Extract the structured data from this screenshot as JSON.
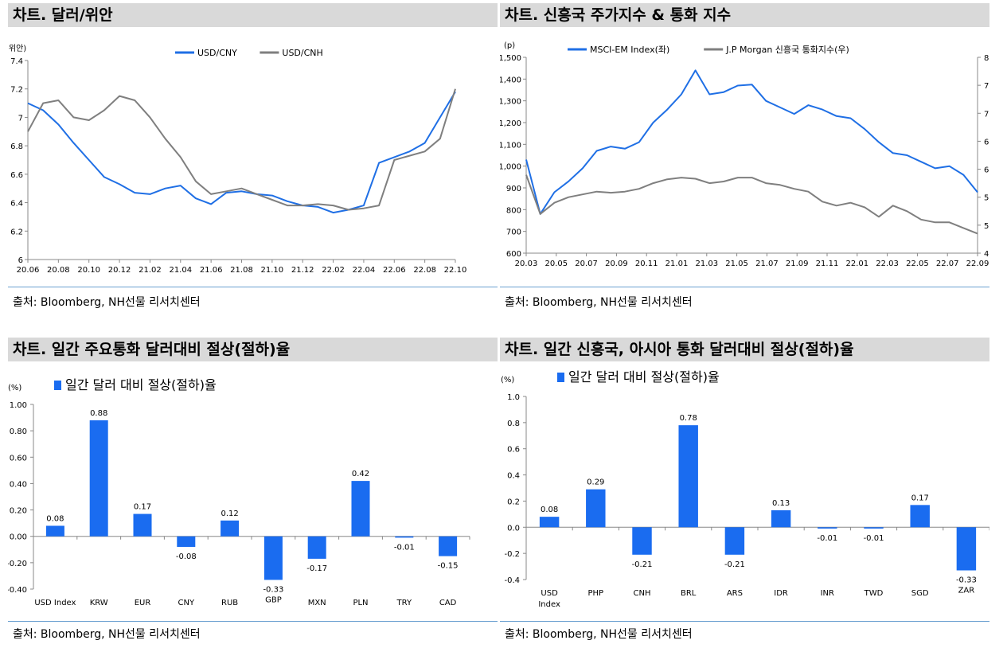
{
  "panels": [
    {
      "title": "차트. 달러/위안",
      "source": "출처: Bloomberg, NH선물 리서치센터"
    },
    {
      "title": "차트. 신흥국 주가지수 & 통화 지수",
      "source": "출처: Bloomberg, NH선물 리서치센터"
    },
    {
      "title": "차트. 일간 주요통화 달러대비 절상(절하)율",
      "source": "출처: Bloomberg, NH선물 리서치센터"
    },
    {
      "title": "차트. 일간 신흥국, 아시아 통화 달러대비 절상(절하)율",
      "source": "출처: Bloomberg, NH선물 리서치센터"
    }
  ],
  "colors": {
    "blue": "#1f6fe5",
    "gray": "#7f7f7f",
    "bar": "#1a6cf0"
  },
  "chart_data": [
    {
      "type": "line",
      "ylabel": "(위안)",
      "ylim": [
        6,
        7.4
      ],
      "yticks": [
        6,
        6.2,
        6.4,
        6.6,
        6.8,
        7,
        7.2,
        7.4
      ],
      "ytick_labels": [
        "6",
        "6.2",
        "6.4",
        "6.6",
        "6.8",
        "7",
        "7.2",
        "7.4"
      ],
      "xticks": [
        "20.06",
        "20.08",
        "20.10",
        "20.12",
        "21.02",
        "21.04",
        "21.06",
        "21.08",
        "21.10",
        "21.12",
        "22.02",
        "22.04",
        "22.06",
        "22.08",
        "22.10"
      ],
      "legend_position": "top-center",
      "series": [
        {
          "name": "USD/CNY",
          "color": "#1f6fe5",
          "x": [
            "20.06",
            "20.07",
            "20.08",
            "20.09",
            "20.10",
            "20.11",
            "20.12",
            "21.01",
            "21.02",
            "21.03",
            "21.04",
            "21.05",
            "21.06",
            "21.07",
            "21.08",
            "21.09",
            "21.10",
            "21.11",
            "21.12",
            "22.01",
            "22.02",
            "22.03",
            "22.04",
            "22.05",
            "22.06",
            "22.07",
            "22.08",
            "22.09",
            "22.10"
          ],
          "values": [
            7.1,
            7.05,
            6.95,
            6.82,
            6.7,
            6.58,
            6.53,
            6.47,
            6.46,
            6.5,
            6.52,
            6.43,
            6.39,
            6.47,
            6.48,
            6.46,
            6.45,
            6.41,
            6.38,
            6.37,
            6.33,
            6.35,
            6.38,
            6.68,
            6.72,
            6.76,
            6.82,
            7.0,
            7.18
          ]
        },
        {
          "name": "USD/CNH",
          "color": "#7f7f7f",
          "x": [
            "20.06",
            "20.07",
            "20.08",
            "20.09",
            "20.10",
            "20.11",
            "20.12",
            "21.01",
            "21.02",
            "21.03",
            "21.04",
            "21.05",
            "21.06",
            "21.07",
            "21.08",
            "21.09",
            "21.10",
            "21.11",
            "21.12",
            "22.01",
            "22.02",
            "22.03",
            "22.04",
            "22.05",
            "22.06",
            "22.07",
            "22.08",
            "22.09",
            "22.10"
          ],
          "values": [
            6.9,
            7.1,
            7.12,
            7.0,
            6.98,
            7.05,
            7.15,
            7.12,
            7.0,
            6.85,
            6.72,
            6.55,
            6.46,
            6.48,
            6.5,
            6.46,
            6.42,
            6.38,
            6.38,
            6.39,
            6.38,
            6.35,
            6.36,
            6.38,
            6.7,
            6.73,
            6.76,
            6.85,
            7.2
          ]
        }
      ]
    },
    {
      "type": "line",
      "ylabel": "(p)",
      "ylim": [
        600,
        1500
      ],
      "yticks": [
        600,
        700,
        800,
        900,
        1000,
        1100,
        1200,
        1300,
        1400,
        1500
      ],
      "ytick_labels": [
        "600",
        "700",
        "800",
        "900",
        "1,000",
        "1,100",
        "1,200",
        "1,300",
        "1,400",
        "1,500"
      ],
      "y2lim": [
        45,
        80
      ],
      "y2ticks": [
        45,
        50,
        55,
        60,
        65,
        70,
        75,
        80
      ],
      "y2tick_labels": [
        "45",
        "50",
        "55",
        "60",
        "65",
        "70",
        "75",
        "80"
      ],
      "xticks": [
        "20.03",
        "20.05",
        "20.07",
        "20.09",
        "20.11",
        "21.01",
        "21.03",
        "21.05",
        "21.07",
        "21.09",
        "21.11",
        "22.01",
        "22.03",
        "22.05",
        "22.07",
        "22.09"
      ],
      "legend_position": "top-center",
      "series": [
        {
          "name": "MSCI-EM Index(좌)",
          "axis": "left",
          "color": "#1f6fe5",
          "x": [
            "20.03",
            "20.03b",
            "20.04",
            "20.05",
            "20.06",
            "20.07",
            "20.08",
            "20.09",
            "20.10",
            "20.11",
            "20.12",
            "21.01",
            "21.02",
            "21.03",
            "21.04",
            "21.05",
            "21.06",
            "21.07",
            "21.08",
            "21.09",
            "21.10",
            "21.11",
            "21.12",
            "22.01",
            "22.02",
            "22.03",
            "22.04",
            "22.05",
            "22.06",
            "22.07",
            "22.08",
            "22.09",
            "22.10"
          ],
          "values": [
            1030,
            780,
            880,
            930,
            990,
            1070,
            1090,
            1080,
            1110,
            1200,
            1260,
            1330,
            1440,
            1330,
            1340,
            1370,
            1375,
            1300,
            1270,
            1240,
            1280,
            1260,
            1230,
            1220,
            1170,
            1110,
            1060,
            1050,
            1020,
            990,
            1000,
            960,
            880
          ]
        },
        {
          "name": "J.P Morgan 신흥국 통화지수(우)",
          "axis": "right",
          "color": "#7f7f7f",
          "x": [
            "20.03",
            "20.03b",
            "20.04",
            "20.05",
            "20.06",
            "20.07",
            "20.08",
            "20.09",
            "20.10",
            "20.11",
            "20.12",
            "21.01",
            "21.02",
            "21.03",
            "21.04",
            "21.05",
            "21.06",
            "21.07",
            "21.08",
            "21.09",
            "21.10",
            "21.11",
            "21.12",
            "22.01",
            "22.02",
            "22.03",
            "22.04",
            "22.05",
            "22.06",
            "22.07",
            "22.08",
            "22.09",
            "22.10"
          ],
          "values": [
            59,
            52,
            54,
            55,
            55.5,
            56,
            55.8,
            56,
            56.5,
            57.5,
            58.2,
            58.5,
            58.3,
            57.5,
            57.8,
            58.5,
            58.5,
            57.5,
            57.2,
            56.5,
            56.0,
            54.2,
            53.5,
            54.0,
            53.2,
            51.5,
            53.5,
            52.5,
            51.0,
            50.5,
            50.5,
            49.5,
            48.5
          ]
        }
      ]
    },
    {
      "type": "bar",
      "ylabel": "(%)",
      "legend": "일간 달러 대비 절상(절하)율",
      "ylim": [
        -0.4,
        1.0
      ],
      "yticks": [
        -0.4,
        -0.2,
        0,
        0.2,
        0.4,
        0.6,
        0.8,
        1.0
      ],
      "ytick_labels": [
        "-0.40",
        "-0.20",
        "0.00",
        "0.20",
        "0.40",
        "0.60",
        "0.80",
        "1.00"
      ],
      "categories": [
        "USD Index",
        "KRW",
        "EUR",
        "CNY",
        "RUB",
        "GBP",
        "MXN",
        "PLN",
        "TRY",
        "CAD"
      ],
      "values": [
        0.08,
        0.88,
        0.17,
        -0.08,
        0.12,
        -0.33,
        -0.17,
        0.42,
        -0.01,
        -0.15
      ],
      "value_labels": [
        "0.08",
        "0.88",
        "0.17",
        "-0.08",
        "0.12",
        "-0.33",
        "-0.17",
        "0.42",
        "-0.01",
        "-0.15"
      ]
    },
    {
      "type": "bar",
      "ylabel": "(%)",
      "legend": "일간 달러 대비 절상(절하)율",
      "ylim": [
        -0.4,
        1.0
      ],
      "yticks": [
        -0.4,
        -0.2,
        0,
        0.2,
        0.4,
        0.6,
        0.8,
        1.0
      ],
      "ytick_labels": [
        "-0.4",
        "-0.2",
        "0.0",
        "0.2",
        "0.4",
        "0.6",
        "0.8",
        "1.0"
      ],
      "categories": [
        "USD Index",
        "PHP",
        "CNH",
        "BRL",
        "ARS",
        "IDR",
        "INR",
        "TWD",
        "SGD",
        "ZAR"
      ],
      "values": [
        0.08,
        0.29,
        -0.21,
        0.78,
        -0.21,
        0.13,
        -0.01,
        -0.01,
        0.17,
        -0.33
      ],
      "value_labels": [
        "0.08",
        "0.29",
        "-0.21",
        "0.78",
        "-0.21",
        "0.13",
        "-0.01",
        "-0.01",
        "0.17",
        "-0.33"
      ]
    }
  ]
}
